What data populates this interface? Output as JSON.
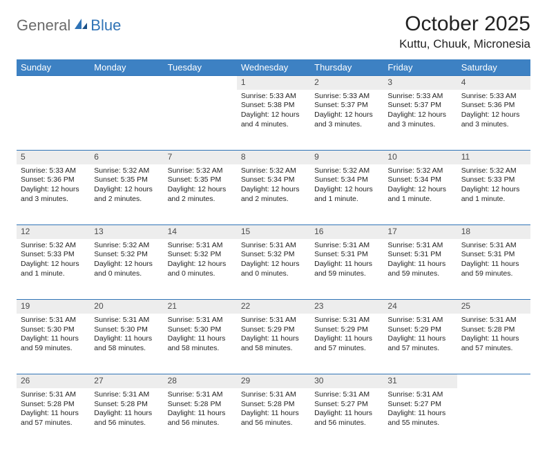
{
  "logo": {
    "part1": "General",
    "part2": "Blue"
  },
  "title": "October 2025",
  "location": "Kuttu, Chuuk, Micronesia",
  "colors": {
    "header_bg": "#3d81c3",
    "header_text": "#ffffff",
    "daynum_bg": "#ededed",
    "border": "#2f73b6",
    "logo_gray": "#6a6a6a",
    "logo_blue": "#2f73b6"
  },
  "day_headers": [
    "Sunday",
    "Monday",
    "Tuesday",
    "Wednesday",
    "Thursday",
    "Friday",
    "Saturday"
  ],
  "weeks": [
    [
      null,
      null,
      null,
      {
        "n": "1",
        "sr": "Sunrise: 5:33 AM",
        "ss": "Sunset: 5:38 PM",
        "dl": "Daylight: 12 hours and 4 minutes."
      },
      {
        "n": "2",
        "sr": "Sunrise: 5:33 AM",
        "ss": "Sunset: 5:37 PM",
        "dl": "Daylight: 12 hours and 3 minutes."
      },
      {
        "n": "3",
        "sr": "Sunrise: 5:33 AM",
        "ss": "Sunset: 5:37 PM",
        "dl": "Daylight: 12 hours and 3 minutes."
      },
      {
        "n": "4",
        "sr": "Sunrise: 5:33 AM",
        "ss": "Sunset: 5:36 PM",
        "dl": "Daylight: 12 hours and 3 minutes."
      }
    ],
    [
      {
        "n": "5",
        "sr": "Sunrise: 5:33 AM",
        "ss": "Sunset: 5:36 PM",
        "dl": "Daylight: 12 hours and 3 minutes."
      },
      {
        "n": "6",
        "sr": "Sunrise: 5:32 AM",
        "ss": "Sunset: 5:35 PM",
        "dl": "Daylight: 12 hours and 2 minutes."
      },
      {
        "n": "7",
        "sr": "Sunrise: 5:32 AM",
        "ss": "Sunset: 5:35 PM",
        "dl": "Daylight: 12 hours and 2 minutes."
      },
      {
        "n": "8",
        "sr": "Sunrise: 5:32 AM",
        "ss": "Sunset: 5:34 PM",
        "dl": "Daylight: 12 hours and 2 minutes."
      },
      {
        "n": "9",
        "sr": "Sunrise: 5:32 AM",
        "ss": "Sunset: 5:34 PM",
        "dl": "Daylight: 12 hours and 1 minute."
      },
      {
        "n": "10",
        "sr": "Sunrise: 5:32 AM",
        "ss": "Sunset: 5:34 PM",
        "dl": "Daylight: 12 hours and 1 minute."
      },
      {
        "n": "11",
        "sr": "Sunrise: 5:32 AM",
        "ss": "Sunset: 5:33 PM",
        "dl": "Daylight: 12 hours and 1 minute."
      }
    ],
    [
      {
        "n": "12",
        "sr": "Sunrise: 5:32 AM",
        "ss": "Sunset: 5:33 PM",
        "dl": "Daylight: 12 hours and 1 minute."
      },
      {
        "n": "13",
        "sr": "Sunrise: 5:32 AM",
        "ss": "Sunset: 5:32 PM",
        "dl": "Daylight: 12 hours and 0 minutes."
      },
      {
        "n": "14",
        "sr": "Sunrise: 5:31 AM",
        "ss": "Sunset: 5:32 PM",
        "dl": "Daylight: 12 hours and 0 minutes."
      },
      {
        "n": "15",
        "sr": "Sunrise: 5:31 AM",
        "ss": "Sunset: 5:32 PM",
        "dl": "Daylight: 12 hours and 0 minutes."
      },
      {
        "n": "16",
        "sr": "Sunrise: 5:31 AM",
        "ss": "Sunset: 5:31 PM",
        "dl": "Daylight: 11 hours and 59 minutes."
      },
      {
        "n": "17",
        "sr": "Sunrise: 5:31 AM",
        "ss": "Sunset: 5:31 PM",
        "dl": "Daylight: 11 hours and 59 minutes."
      },
      {
        "n": "18",
        "sr": "Sunrise: 5:31 AM",
        "ss": "Sunset: 5:31 PM",
        "dl": "Daylight: 11 hours and 59 minutes."
      }
    ],
    [
      {
        "n": "19",
        "sr": "Sunrise: 5:31 AM",
        "ss": "Sunset: 5:30 PM",
        "dl": "Daylight: 11 hours and 59 minutes."
      },
      {
        "n": "20",
        "sr": "Sunrise: 5:31 AM",
        "ss": "Sunset: 5:30 PM",
        "dl": "Daylight: 11 hours and 58 minutes."
      },
      {
        "n": "21",
        "sr": "Sunrise: 5:31 AM",
        "ss": "Sunset: 5:30 PM",
        "dl": "Daylight: 11 hours and 58 minutes."
      },
      {
        "n": "22",
        "sr": "Sunrise: 5:31 AM",
        "ss": "Sunset: 5:29 PM",
        "dl": "Daylight: 11 hours and 58 minutes."
      },
      {
        "n": "23",
        "sr": "Sunrise: 5:31 AM",
        "ss": "Sunset: 5:29 PM",
        "dl": "Daylight: 11 hours and 57 minutes."
      },
      {
        "n": "24",
        "sr": "Sunrise: 5:31 AM",
        "ss": "Sunset: 5:29 PM",
        "dl": "Daylight: 11 hours and 57 minutes."
      },
      {
        "n": "25",
        "sr": "Sunrise: 5:31 AM",
        "ss": "Sunset: 5:28 PM",
        "dl": "Daylight: 11 hours and 57 minutes."
      }
    ],
    [
      {
        "n": "26",
        "sr": "Sunrise: 5:31 AM",
        "ss": "Sunset: 5:28 PM",
        "dl": "Daylight: 11 hours and 57 minutes."
      },
      {
        "n": "27",
        "sr": "Sunrise: 5:31 AM",
        "ss": "Sunset: 5:28 PM",
        "dl": "Daylight: 11 hours and 56 minutes."
      },
      {
        "n": "28",
        "sr": "Sunrise: 5:31 AM",
        "ss": "Sunset: 5:28 PM",
        "dl": "Daylight: 11 hours and 56 minutes."
      },
      {
        "n": "29",
        "sr": "Sunrise: 5:31 AM",
        "ss": "Sunset: 5:28 PM",
        "dl": "Daylight: 11 hours and 56 minutes."
      },
      {
        "n": "30",
        "sr": "Sunrise: 5:31 AM",
        "ss": "Sunset: 5:27 PM",
        "dl": "Daylight: 11 hours and 56 minutes."
      },
      {
        "n": "31",
        "sr": "Sunrise: 5:31 AM",
        "ss": "Sunset: 5:27 PM",
        "dl": "Daylight: 11 hours and 55 minutes."
      },
      null
    ]
  ]
}
